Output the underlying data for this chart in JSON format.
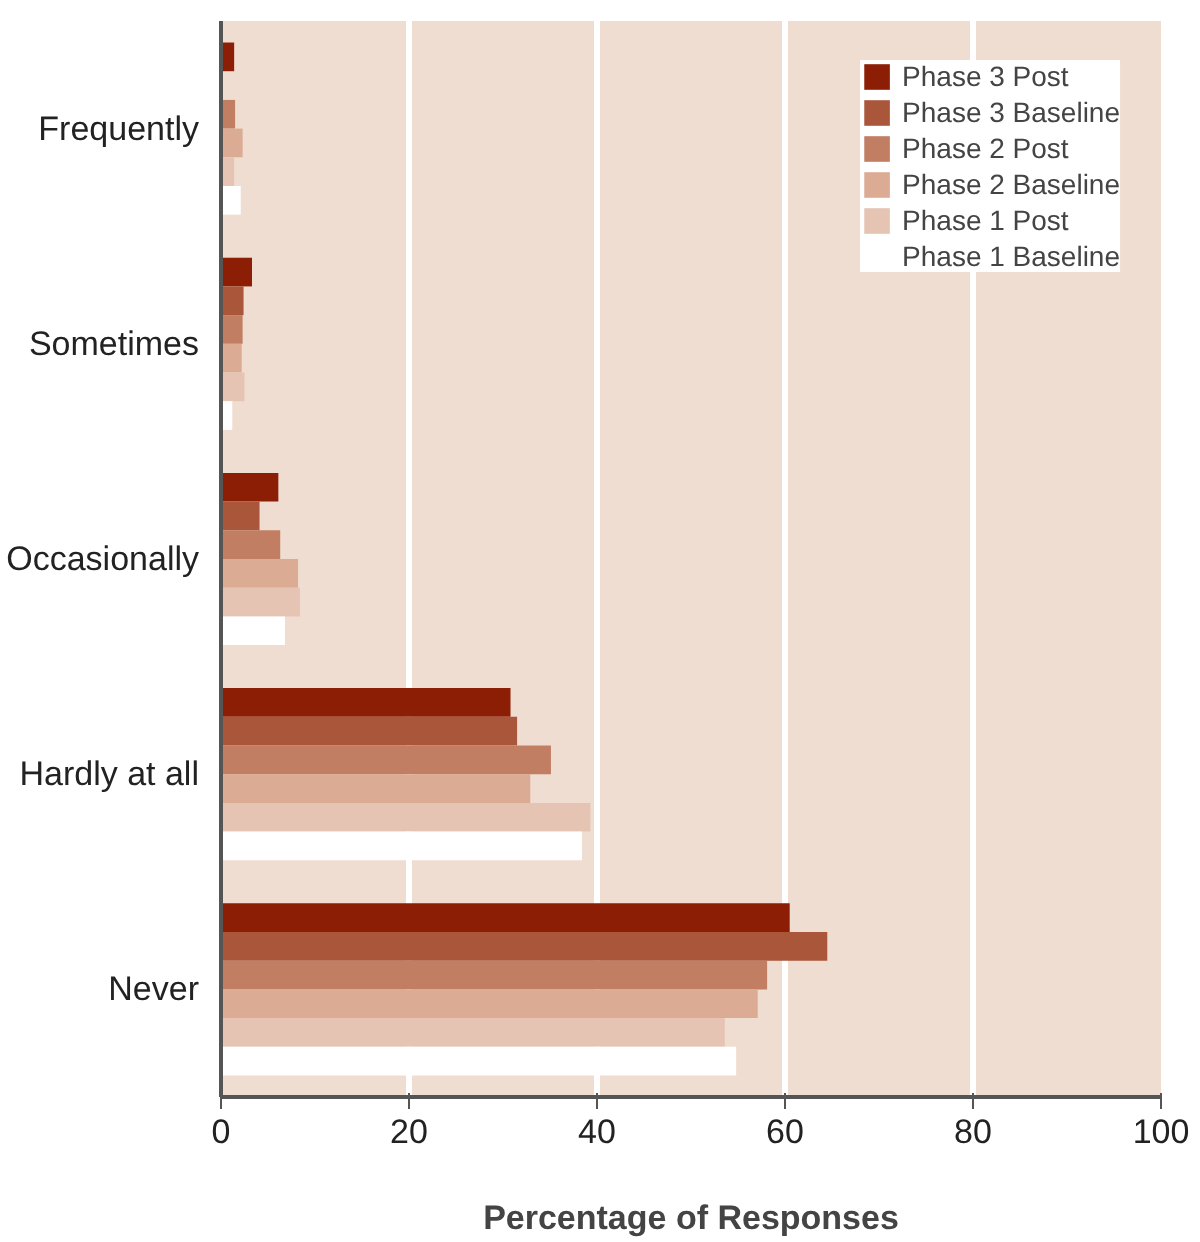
{
  "chart_data": {
    "type": "bar",
    "orientation": "horizontal",
    "xlabel": "Percentage of Responses",
    "categories": [
      "Frequently",
      "Sometimes",
      "Occasionally",
      "Hardly at all",
      "Never"
    ],
    "series": [
      {
        "name": "Phase 3 Post",
        "color": "#8b1e04",
        "values": [
          1.4,
          3.3,
          6.1,
          30.8,
          60.5
        ]
      },
      {
        "name": "Phase 3 Baseline",
        "color": "#a9563a",
        "values": [
          0,
          2.4,
          4.1,
          31.5,
          64.5
        ]
      },
      {
        "name": "Phase 2 Post",
        "color": "#c17e63",
        "values": [
          1.5,
          2.3,
          6.3,
          35.1,
          58.1
        ]
      },
      {
        "name": "Phase 2 Baseline",
        "color": "#dbab94",
        "values": [
          2.3,
          2.2,
          8.2,
          32.9,
          57.1
        ]
      },
      {
        "name": "Phase 1 Post",
        "color": "#e6c4b4",
        "values": [
          1.4,
          2.5,
          8.4,
          39.3,
          53.6
        ]
      },
      {
        "name": "Phase 1 Baseline",
        "color": "#ffffff",
        "values": [
          2.1,
          1.2,
          6.8,
          38.4,
          54.8
        ]
      }
    ],
    "xlim": [
      0,
      100
    ],
    "xticks": [
      0,
      20,
      40,
      60,
      80,
      100
    ],
    "grid": "x",
    "legend": "top right"
  }
}
